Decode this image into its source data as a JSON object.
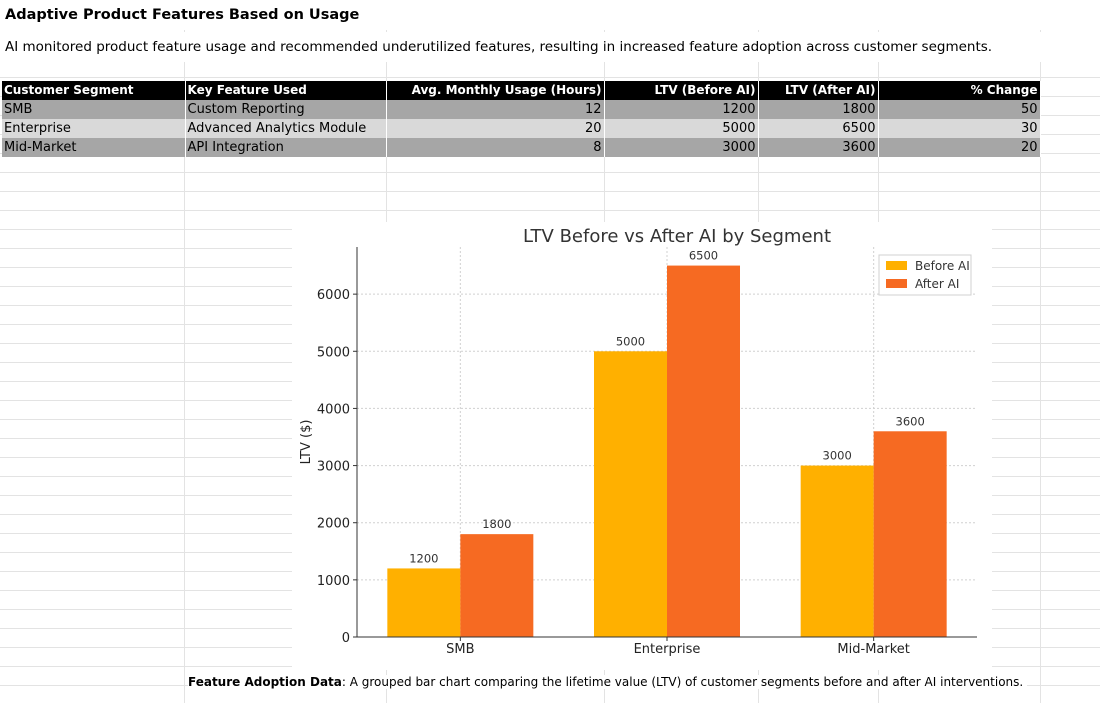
{
  "page": {
    "title": "Adaptive Product Features Based on Usage",
    "subtitle": "AI monitored product feature usage and recommended underutilized features, resulting in increased feature adoption across customer segments."
  },
  "table": {
    "headers": [
      "Customer Segment",
      "Key Feature Used",
      "Avg. Monthly Usage (Hours)",
      "LTV (Before AI)",
      "LTV (After AI)",
      "% Change"
    ],
    "rows": [
      [
        "SMB",
        "Custom Reporting",
        "12",
        "1200",
        "1800",
        "50"
      ],
      [
        "Enterprise",
        "Advanced Analytics Module",
        "20",
        "5000",
        "6500",
        "30"
      ],
      [
        "Mid-Market",
        "API Integration",
        "8",
        "3000",
        "3600",
        "20"
      ]
    ]
  },
  "caption": {
    "bold": "Feature Adoption Data",
    "text": ": A grouped bar chart comparing the lifetime value (LTV) of customer segments before and after AI interventions."
  },
  "chart_data": {
    "type": "bar",
    "title": "LTV Before vs After AI by Segment",
    "xlabel": "",
    "ylabel": "LTV ($)",
    "categories": [
      "SMB",
      "Enterprise",
      "Mid-Market"
    ],
    "series": [
      {
        "name": "Before AI",
        "values": [
          1200,
          5000,
          3000
        ],
        "color": "#FFB000"
      },
      {
        "name": "After AI",
        "values": [
          1800,
          6500,
          3600
        ],
        "color": "#F66A22"
      }
    ],
    "yticks": [
      0,
      1000,
      2000,
      3000,
      4000,
      5000,
      6000
    ],
    "ylim": [
      0,
      6825
    ],
    "grid": true,
    "legend": "top-right"
  }
}
